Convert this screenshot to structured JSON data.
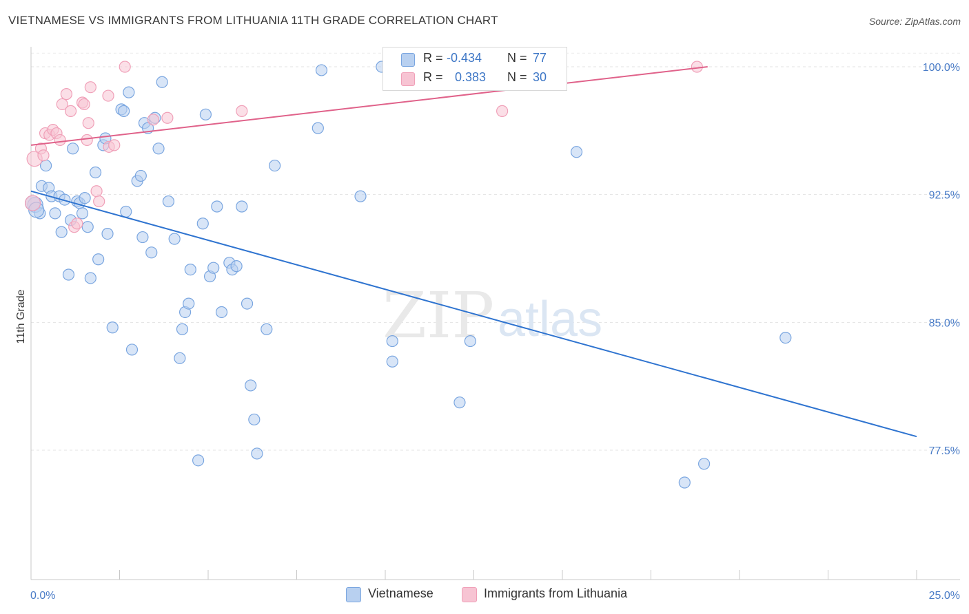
{
  "title": "VIETNAMESE VS IMMIGRANTS FROM LITHUANIA 11TH GRADE CORRELATION CHART",
  "source": "Source: ZipAtlas.com",
  "watermark": {
    "zip": "ZIP",
    "atlas": "atlas"
  },
  "legend": {
    "rows": [
      {
        "r_label": "R = ",
        "r_value": "-0.434",
        "n_label": "N = ",
        "n_value": "77"
      },
      {
        "r_label": "R = ",
        "r_value": "0.383",
        "n_label": "N = ",
        "n_value": "30"
      }
    ]
  },
  "bottom_legend": {
    "series1": "Vietnamese",
    "series2": "Immigrants from Lithuania"
  },
  "chart_data": {
    "type": "scatter",
    "title": "VIETNAMESE VS IMMIGRANTS FROM LITHUANIA 11TH GRADE CORRELATION CHART",
    "xlabel": "",
    "ylabel": "11th Grade",
    "xlim": [
      0,
      25
    ],
    "ylim": [
      70.5,
      100.8
    ],
    "x_tick_labels": [
      "0.0%",
      "25.0%"
    ],
    "y_ticks": [
      77.5,
      85.0,
      92.5,
      100.0
    ],
    "y_tick_labels": [
      "77.5%",
      "85.0%",
      "92.5%",
      "100.0%"
    ],
    "grid": true,
    "series": [
      {
        "name": "Vietnamese",
        "color": "#7aa6e0",
        "fill": "#b8d0f0",
        "line_color": "#2f74d0",
        "R": -0.434,
        "N": 77,
        "trend": {
          "x0": 0.0,
          "y0": 92.7,
          "x1": 25.0,
          "y1": 78.3
        },
        "points": [
          [
            0.12,
            91.9
          ],
          [
            0.25,
            91.4
          ],
          [
            0.3,
            93.0
          ],
          [
            0.42,
            94.2
          ],
          [
            0.5,
            92.9
          ],
          [
            0.58,
            92.4
          ],
          [
            0.68,
            91.4
          ],
          [
            0.8,
            92.4
          ],
          [
            0.86,
            90.3
          ],
          [
            0.95,
            92.2
          ],
          [
            1.06,
            87.8
          ],
          [
            1.12,
            91.0
          ],
          [
            1.18,
            95.2
          ],
          [
            1.3,
            92.1
          ],
          [
            1.37,
            92.0
          ],
          [
            1.45,
            91.4
          ],
          [
            1.52,
            92.3
          ],
          [
            1.6,
            90.6
          ],
          [
            1.68,
            87.6
          ],
          [
            1.82,
            93.8
          ],
          [
            1.9,
            88.7
          ],
          [
            2.04,
            95.4
          ],
          [
            2.1,
            95.8
          ],
          [
            2.16,
            90.2
          ],
          [
            2.3,
            84.7
          ],
          [
            2.55,
            97.5
          ],
          [
            2.62,
            97.4
          ],
          [
            2.68,
            91.5
          ],
          [
            2.76,
            98.5
          ],
          [
            2.85,
            83.4
          ],
          [
            3.0,
            93.3
          ],
          [
            3.1,
            93.6
          ],
          [
            3.15,
            90.0
          ],
          [
            3.2,
            96.7
          ],
          [
            3.3,
            96.4
          ],
          [
            3.4,
            89.1
          ],
          [
            3.5,
            97.0
          ],
          [
            3.6,
            95.2
          ],
          [
            3.7,
            99.1
          ],
          [
            3.88,
            92.1
          ],
          [
            4.05,
            89.9
          ],
          [
            4.2,
            82.9
          ],
          [
            4.27,
            84.6
          ],
          [
            4.35,
            85.6
          ],
          [
            4.45,
            86.1
          ],
          [
            4.5,
            88.1
          ],
          [
            4.72,
            76.9
          ],
          [
            4.85,
            90.8
          ],
          [
            4.93,
            97.2
          ],
          [
            5.05,
            87.7
          ],
          [
            5.15,
            88.2
          ],
          [
            5.25,
            91.8
          ],
          [
            5.38,
            85.6
          ],
          [
            5.6,
            88.5
          ],
          [
            5.68,
            88.1
          ],
          [
            5.8,
            88.3
          ],
          [
            5.95,
            91.8
          ],
          [
            6.1,
            86.1
          ],
          [
            6.2,
            81.3
          ],
          [
            6.3,
            79.3
          ],
          [
            6.38,
            77.3
          ],
          [
            6.65,
            84.6
          ],
          [
            6.88,
            94.2
          ],
          [
            8.1,
            96.4
          ],
          [
            8.2,
            99.8
          ],
          [
            9.3,
            92.4
          ],
          [
            9.9,
            100.0
          ],
          [
            10.2,
            83.9
          ],
          [
            10.2,
            82.7
          ],
          [
            12.1,
            80.3
          ],
          [
            12.4,
            83.9
          ],
          [
            15.4,
            95.0
          ],
          [
            18.45,
            75.6
          ],
          [
            19.0,
            76.7
          ],
          [
            21.3,
            84.1
          ],
          [
            0.05,
            92.0
          ],
          [
            0.15,
            91.6
          ]
        ]
      },
      {
        "name": "Immigrants from Lithuania",
        "color": "#f0a0b8",
        "fill": "#f7c4d3",
        "line_color": "#e0628a",
        "R": 0.383,
        "N": 30,
        "trend": {
          "x0": 0.0,
          "y0": 95.4,
          "x1": 19.1,
          "y1": 100.0
        },
        "points": [
          [
            0.1,
            94.6
          ],
          [
            0.28,
            95.2
          ],
          [
            0.35,
            94.8
          ],
          [
            0.4,
            96.1
          ],
          [
            0.52,
            96.0
          ],
          [
            0.62,
            96.3
          ],
          [
            0.72,
            96.1
          ],
          [
            0.82,
            95.7
          ],
          [
            0.88,
            97.8
          ],
          [
            1.0,
            98.4
          ],
          [
            1.12,
            97.4
          ],
          [
            1.22,
            90.6
          ],
          [
            1.3,
            90.8
          ],
          [
            1.45,
            97.9
          ],
          [
            1.5,
            97.8
          ],
          [
            1.58,
            95.7
          ],
          [
            1.62,
            96.7
          ],
          [
            1.68,
            98.8
          ],
          [
            1.85,
            92.7
          ],
          [
            1.92,
            92.1
          ],
          [
            2.18,
            98.3
          ],
          [
            2.2,
            95.3
          ],
          [
            2.35,
            95.4
          ],
          [
            2.65,
            100.0
          ],
          [
            3.45,
            96.9
          ],
          [
            3.85,
            97.0
          ],
          [
            5.95,
            97.4
          ],
          [
            13.3,
            97.4
          ],
          [
            18.8,
            100.0
          ],
          [
            0.05,
            92.0
          ]
        ]
      }
    ]
  }
}
